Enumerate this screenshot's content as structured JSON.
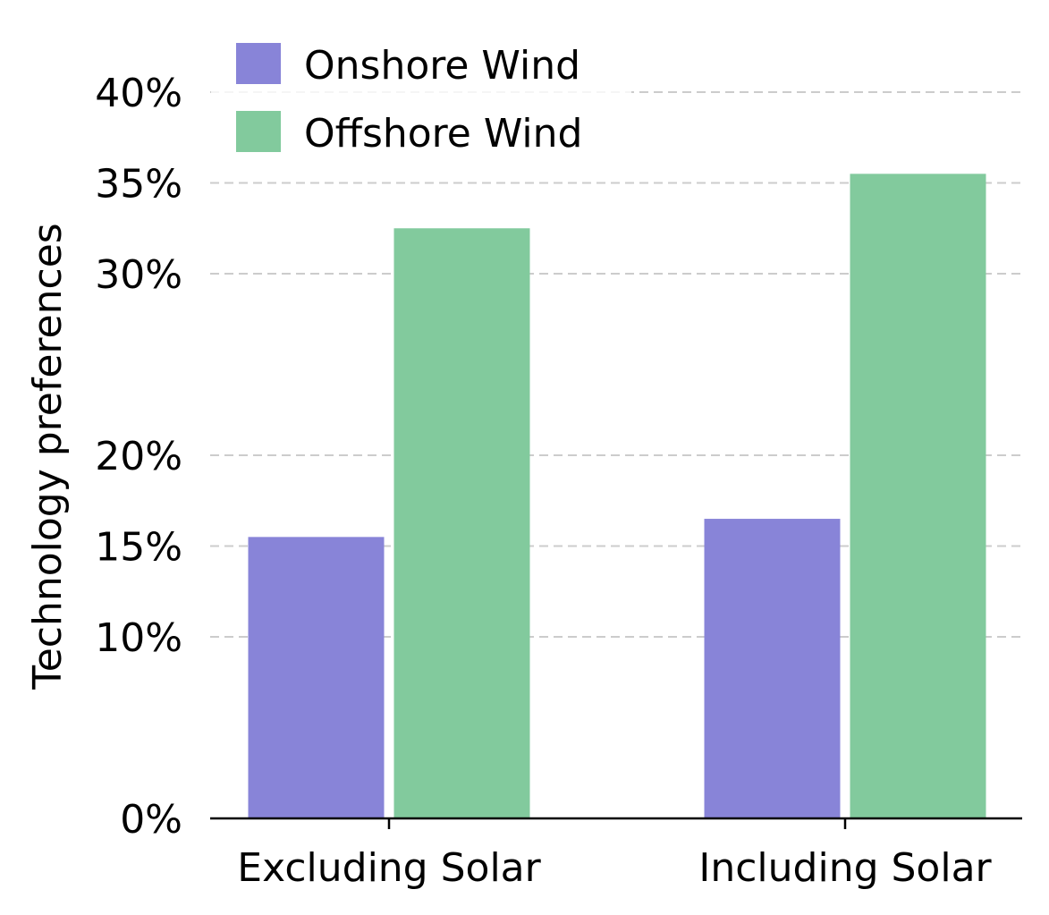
{
  "chart_data": {
    "type": "bar",
    "categories": [
      "Excluding Solar",
      "Including Solar"
    ],
    "series": [
      {
        "name": "Onshore Wind",
        "values": [
          15.5,
          16.5
        ],
        "color": "#8884d8"
      },
      {
        "name": "Offshore Wind",
        "values": [
          32.5,
          35.5
        ],
        "color": "#82ca9d"
      }
    ],
    "ylabel": "Technology preferences",
    "xlabel": "",
    "ylim": [
      0,
      40
    ],
    "yticks": [
      0,
      10,
      15,
      20,
      30,
      35,
      40
    ],
    "ytick_labels": [
      "0%",
      "10%",
      "15%",
      "20%",
      "30%",
      "35%",
      "40%"
    ],
    "grid": "horizontal-dashed",
    "legend_position": "top-left"
  }
}
